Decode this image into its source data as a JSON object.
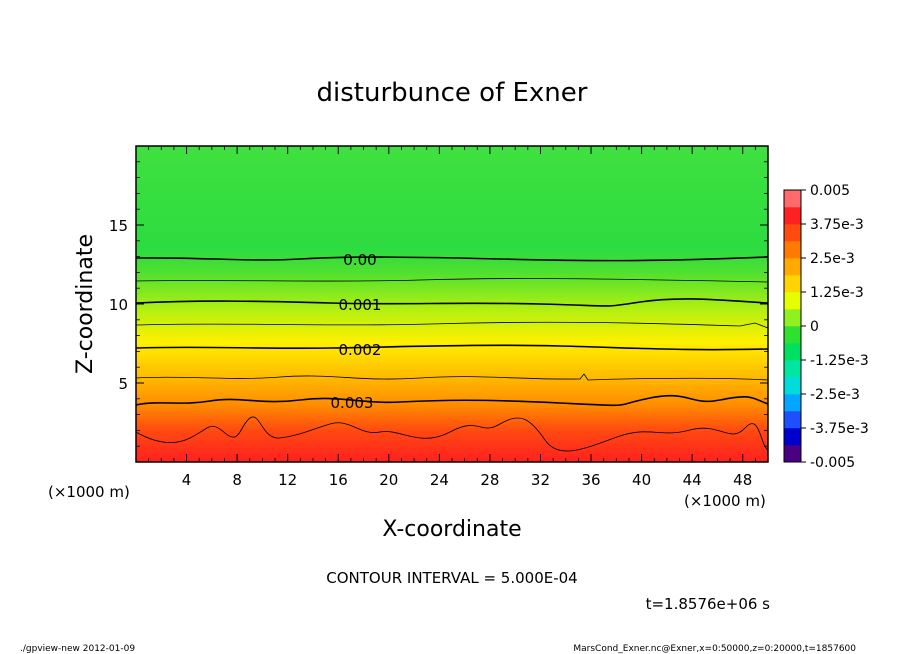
{
  "chart_data": {
    "type": "heatmap",
    "title": "disturbunce of Exner",
    "xlabel": "X-coordinate",
    "ylabel": "Z-coordinate",
    "x_unit_left": "(×1000 m)",
    "x_unit_right": "(×1000 m)",
    "xlim": [
      0,
      50
    ],
    "ylim": [
      0,
      20
    ],
    "xticks": [
      4,
      8,
      12,
      16,
      20,
      24,
      28,
      32,
      36,
      40,
      44,
      48
    ],
    "yticks": [
      5,
      10,
      15
    ],
    "grid": false,
    "contour_interval_text": "CONTOUR INTERVAL = 5.000E-04",
    "time_text": "t=1.8576e+06 s",
    "footer_left": "./gpview-new  2012-01-09",
    "footer_right": "MarsCond_Exner.nc@Exner,x=0:50000,z=0:20000,t=1857600",
    "contour_labels": [
      {
        "text": "0.00",
        "x": 17.5,
        "z": 12.8
      },
      {
        "text": "0.001",
        "x": 17.5,
        "z": 10.0
      },
      {
        "text": "0.002",
        "x": 17.5,
        "z": 7.1
      },
      {
        "text": "0.003",
        "x": 17.0,
        "z": 3.9
      }
    ],
    "colorbar": {
      "min": -0.005,
      "max": 0.005,
      "tick_labels": [
        "0.005",
        "3.75e-3",
        "2.5e-3",
        "1.25e-3",
        "0",
        "-1.25e-3",
        "-2.5e-3",
        "-3.75e-3",
        "-0.005"
      ],
      "colors": [
        "#4b0082",
        "#0000cd",
        "#1e4fff",
        "#00a6ff",
        "#00dcdc",
        "#00e6a0",
        "#00e060",
        "#30e030",
        "#90f020",
        "#e6ff00",
        "#ffd400",
        "#ffaa00",
        "#ff7a00",
        "#ff4a10",
        "#ff2020",
        "#ff6a6a"
      ]
    }
  }
}
